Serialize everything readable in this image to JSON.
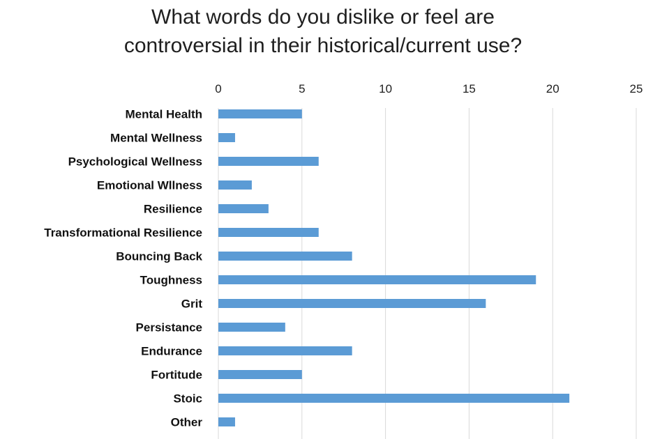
{
  "chart_data": {
    "type": "bar",
    "orientation": "horizontal",
    "title_lines": [
      "What words do you dislike or feel are",
      "controversial in their historical/current use?"
    ],
    "categories": [
      "Mental Health",
      "Mental Wellness",
      "Psychological Wellness",
      "Emotional Wllness",
      "Resilience",
      "Transformational Resilience",
      "Bouncing Back",
      "Toughness",
      "Grit",
      "Persistance",
      "Endurance",
      "Fortitude",
      "Stoic",
      "Other"
    ],
    "values": [
      5,
      1,
      6,
      2,
      3,
      6,
      8,
      19,
      16,
      4,
      8,
      5,
      21,
      1
    ],
    "xlim": [
      0,
      25
    ],
    "xticks": [
      "0",
      "5",
      "10",
      "15",
      "20",
      "25"
    ],
    "x_axis_position": "top",
    "grid": true,
    "bar_color": "#5b9bd5",
    "grid_color": "#d9d9d9"
  }
}
